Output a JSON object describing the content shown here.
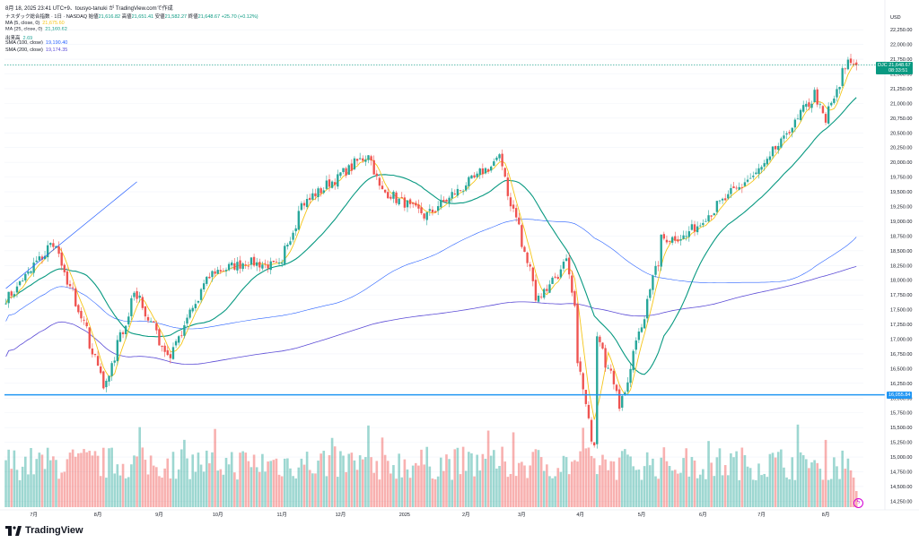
{
  "header": {
    "text": "8月 18, 2025 23:41 UTC+9、tousyo-tanuki が TradingView.comで作成",
    "symbol_line": "ナスダック総合指数 · 1日 · NASDAQ",
    "open_label": "始値",
    "open": "21,616.82",
    "high_label": "高値",
    "high": "21,651.41",
    "low_label": "安値",
    "low": "21,582.27",
    "close_label": "終値",
    "close": "21,648.67",
    "change": "+25.70 (+0.12%)"
  },
  "legend": [
    {
      "label": "MA (5, close, 0)",
      "value": "21,675.60",
      "color": "#f5c518"
    },
    {
      "label": "MA (25, close, 0)",
      "value": "21,160.62",
      "color": "#089981"
    },
    {
      "label": "出来高",
      "value": "2.69",
      "color": "#26a69a"
    },
    {
      "label": "SMA (100, close)",
      "value": "19,190.40",
      "color": "#2962ff"
    },
    {
      "label": "SMA (200, close)",
      "value": "19,174.35",
      "color": "#5b4bd6"
    }
  ],
  "price_axis": {
    "currency": "USD",
    "ticks": [
      "22,250.00",
      "22,000.00",
      "21,750.00",
      "21,500.00",
      "21,250.00",
      "21,000.00",
      "20,750.00",
      "20,500.00",
      "20,250.00",
      "20,000.00",
      "19,750.00",
      "19,500.00",
      "19,250.00",
      "19,000.00",
      "18,750.00",
      "18,500.00",
      "18,250.00",
      "18,000.00",
      "17,750.00",
      "17,500.00",
      "17,250.00",
      "17,000.00",
      "16,750.00",
      "16,500.00",
      "16,250.00",
      "16,000.00",
      "15,750.00",
      "15,500.00",
      "15,250.00",
      "15,000.00",
      "14,750.00",
      "14,500.00",
      "14,250.00"
    ]
  },
  "last_price": {
    "symbol": "DJC",
    "value": "21,648.67",
    "countdown": "08:33:51",
    "color": "#089981"
  },
  "horizontal_line": {
    "value": "16,055.84",
    "color": "#2196f3"
  },
  "time_axis": [
    "7月",
    "8月",
    "9月",
    "10月",
    "11月",
    "12月",
    "2025",
    "2月",
    "3月",
    "4月",
    "5月",
    "6月",
    "7月",
    "8月"
  ],
  "branding": {
    "name": "TradingView"
  },
  "chart_data": {
    "type": "candlestick",
    "ylim": [
      14150,
      22450
    ],
    "up_color": "#26a69a",
    "down_color": "#ef5350",
    "anchors": [
      {
        "t": "2024-06-17",
        "c": 17690
      },
      {
        "t": "2024-07-10",
        "c": 18640
      },
      {
        "t": "2024-07-24",
        "c": 17340
      },
      {
        "t": "2024-08-05",
        "c": 16200
      },
      {
        "t": "2024-08-20",
        "c": 17800
      },
      {
        "t": "2024-09-06",
        "c": 16690
      },
      {
        "t": "2024-09-27",
        "c": 18120
      },
      {
        "t": "2024-10-15",
        "c": 18310
      },
      {
        "t": "2024-11-01",
        "c": 18230
      },
      {
        "t": "2024-11-11",
        "c": 19260
      },
      {
        "t": "2024-12-16",
        "c": 20170
      },
      {
        "t": "2024-12-20",
        "c": 19570
      },
      {
        "t": "2025-01-13",
        "c": 19090
      },
      {
        "t": "2025-02-19",
        "c": 20060
      },
      {
        "t": "2025-03-10",
        "c": 17690
      },
      {
        "t": "2025-03-25",
        "c": 18300
      },
      {
        "t": "2025-04-04",
        "c": 15590
      },
      {
        "t": "2025-04-08",
        "c": 15260
      },
      {
        "t": "2025-04-09",
        "c": 17120
      },
      {
        "t": "2025-04-21",
        "c": 15870
      },
      {
        "t": "2025-05-12",
        "c": 18700
      },
      {
        "t": "2025-05-23",
        "c": 18740
      },
      {
        "t": "2025-06-13",
        "c": 19400
      },
      {
        "t": "2025-07-01",
        "c": 19900
      },
      {
        "t": "2025-07-28",
        "c": 21180
      },
      {
        "t": "2025-08-01",
        "c": 20650
      },
      {
        "t": "2025-08-13",
        "c": 21710
      },
      {
        "t": "2025-08-18",
        "c": 21648
      }
    ],
    "ma5": {
      "name": "MA (5, close, 0)",
      "color": "#f5c518"
    },
    "ma25": {
      "name": "MA (25, close, 0)",
      "color": "#089981"
    },
    "sma100": {
      "name": "SMA (100, close)",
      "color": "#2962ff"
    },
    "sma200": {
      "name": "SMA (200, close)",
      "color": "#5b4bd6"
    },
    "trendline": {
      "color": "#2962ff",
      "from": {
        "t": "2024-06-03",
        "v": 17860
      },
      "to": {
        "t": "2024-08-21",
        "v": 19670
      }
    },
    "volume": {
      "axis": "出来高"
    }
  }
}
